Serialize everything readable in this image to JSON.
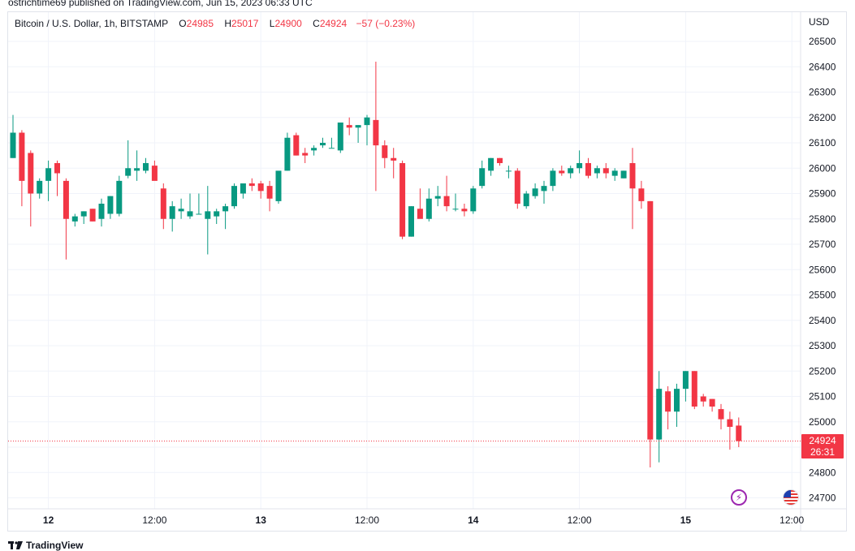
{
  "header": {
    "published_line": "ostrichtime69 published on TradingView.com, Jun 15, 2023 06:33 UTC"
  },
  "legend": {
    "symbol": "Bitcoin / U.S. Dollar, 1h, BITSTAMP",
    "o_label": "O",
    "o_value": "24985",
    "h_label": "H",
    "h_value": "25017",
    "l_label": "L",
    "l_value": "24900",
    "c_label": "C",
    "c_value": "24924",
    "change": "−57 (−0.23%)"
  },
  "axis": {
    "currency": "USD",
    "last_price": "24924",
    "countdown": "26:31"
  },
  "footer": {
    "brand": "TradingView"
  },
  "colors": {
    "up": "#089981",
    "down": "#f23645",
    "grid": "#f0f3fa",
    "axis_text": "#131722"
  },
  "icons": [
    "flash-event-icon",
    "us-flag-event-icon"
  ],
  "chart_data": {
    "type": "candlestick",
    "interval": "1h",
    "y_ticks": [
      24700,
      24800,
      24900,
      25000,
      25100,
      25200,
      25300,
      25400,
      25500,
      25600,
      25700,
      25800,
      25900,
      26000,
      26100,
      26200,
      26300,
      26400,
      26500
    ],
    "x_ticks": [
      {
        "index": 4,
        "label": "12"
      },
      {
        "index": 16,
        "label": "12:00"
      },
      {
        "index": 28,
        "label": "13"
      },
      {
        "index": 40,
        "label": "12:00"
      },
      {
        "index": 52,
        "label": "14"
      },
      {
        "index": 64,
        "label": "12:00"
      },
      {
        "index": 76,
        "label": "15"
      },
      {
        "index": 88,
        "label": "12:00"
      }
    ],
    "ylim": [
      24660,
      26550
    ],
    "last_price": 24924,
    "candles": [
      [
        26040,
        26210,
        26040,
        26140
      ],
      [
        26140,
        26150,
        25850,
        25950
      ],
      [
        26060,
        26070,
        25770,
        25900
      ],
      [
        25900,
        25960,
        25880,
        25950
      ],
      [
        25950,
        26030,
        25870,
        26000
      ],
      [
        26020,
        26030,
        25890,
        25980
      ],
      [
        25950,
        25960,
        25640,
        25800
      ],
      [
        25790,
        25820,
        25770,
        25810
      ],
      [
        25810,
        25830,
        25780,
        25830
      ],
      [
        25840,
        25840,
        25790,
        25790
      ],
      [
        25800,
        25880,
        25770,
        25860
      ],
      [
        25820,
        25890,
        25800,
        25890
      ],
      [
        25820,
        25970,
        25810,
        25950
      ],
      [
        25970,
        26110,
        25960,
        26000
      ],
      [
        25990,
        26070,
        25950,
        26000
      ],
      [
        25990,
        26040,
        25980,
        26020
      ],
      [
        26010,
        26030,
        25960,
        25950
      ],
      [
        25920,
        25940,
        25760,
        25800
      ],
      [
        25800,
        25870,
        25750,
        25850
      ],
      [
        25830,
        25880,
        25800,
        25840
      ],
      [
        25810,
        25900,
        25800,
        25830
      ],
      [
        25820,
        25900,
        25820,
        25820
      ],
      [
        25800,
        25930,
        25660,
        25830
      ],
      [
        25810,
        25840,
        25780,
        25830
      ],
      [
        25830,
        25860,
        25760,
        25850
      ],
      [
        25850,
        25940,
        25840,
        25930
      ],
      [
        25900,
        25940,
        25880,
        25940
      ],
      [
        25940,
        25960,
        25910,
        25930
      ],
      [
        25940,
        25950,
        25880,
        25910
      ],
      [
        25930,
        25950,
        25830,
        25880
      ],
      [
        25870,
        25980,
        25860,
        25990
      ],
      [
        25990,
        26140,
        25990,
        26120
      ],
      [
        26130,
        26140,
        26050,
        26050
      ],
      [
        26060,
        26080,
        26020,
        26050
      ],
      [
        26070,
        26090,
        26050,
        26080
      ],
      [
        26090,
        26120,
        26080,
        26100
      ],
      [
        26080,
        26120,
        26080,
        26080
      ],
      [
        26070,
        26170,
        26060,
        26180
      ],
      [
        26170,
        26200,
        26130,
        26160
      ],
      [
        26160,
        26170,
        26100,
        26170
      ],
      [
        26170,
        26210,
        26090,
        26200
      ],
      [
        26190,
        26420,
        25910,
        26090
      ],
      [
        26090,
        26110,
        26000,
        26040
      ],
      [
        26040,
        26080,
        25960,
        26030
      ],
      [
        26020,
        26030,
        25720,
        25730
      ],
      [
        25730,
        25850,
        25730,
        25850
      ],
      [
        25840,
        25920,
        25810,
        25800
      ],
      [
        25800,
        25920,
        25790,
        25880
      ],
      [
        25880,
        25930,
        25850,
        25890
      ],
      [
        25890,
        25970,
        25830,
        25850
      ],
      [
        25840,
        25900,
        25830,
        25840
      ],
      [
        25840,
        25860,
        25810,
        25830
      ],
      [
        25830,
        25930,
        25820,
        25920
      ],
      [
        25930,
        26030,
        25920,
        26000
      ],
      [
        25990,
        26040,
        25970,
        26040
      ],
      [
        26040,
        26040,
        26010,
        26020
      ],
      [
        25990,
        26010,
        25960,
        25990
      ],
      [
        25990,
        26000,
        25840,
        25860
      ],
      [
        25850,
        25910,
        25840,
        25900
      ],
      [
        25890,
        25940,
        25880,
        25920
      ],
      [
        25910,
        25950,
        25860,
        25930
      ],
      [
        25930,
        26000,
        25910,
        25990
      ],
      [
        25990,
        26010,
        25970,
        25980
      ],
      [
        25980,
        26010,
        25960,
        26000
      ],
      [
        26000,
        26070,
        25980,
        26020
      ],
      [
        26020,
        26040,
        25960,
        25970
      ],
      [
        25980,
        26010,
        25960,
        26000
      ],
      [
        26000,
        26020,
        25960,
        25980
      ],
      [
        25970,
        26000,
        25950,
        25990
      ],
      [
        25960,
        25990,
        25960,
        25990
      ],
      [
        26020,
        26080,
        25760,
        25920
      ],
      [
        25920,
        25950,
        25840,
        25870
      ],
      [
        25870,
        25870,
        24820,
        24930
      ],
      [
        24930,
        25200,
        24840,
        25130
      ],
      [
        25120,
        25140,
        24970,
        25040
      ],
      [
        25040,
        25150,
        24980,
        25130
      ],
      [
        25130,
        25200,
        25080,
        25200
      ],
      [
        25200,
        25200,
        25050,
        25060
      ],
      [
        25100,
        25110,
        25060,
        25080
      ],
      [
        25090,
        25090,
        25040,
        25060
      ],
      [
        25050,
        25070,
        24970,
        25010
      ],
      [
        25010,
        25040,
        24890,
        24980
      ],
      [
        24985,
        25017,
        24900,
        24924
      ]
    ]
  }
}
